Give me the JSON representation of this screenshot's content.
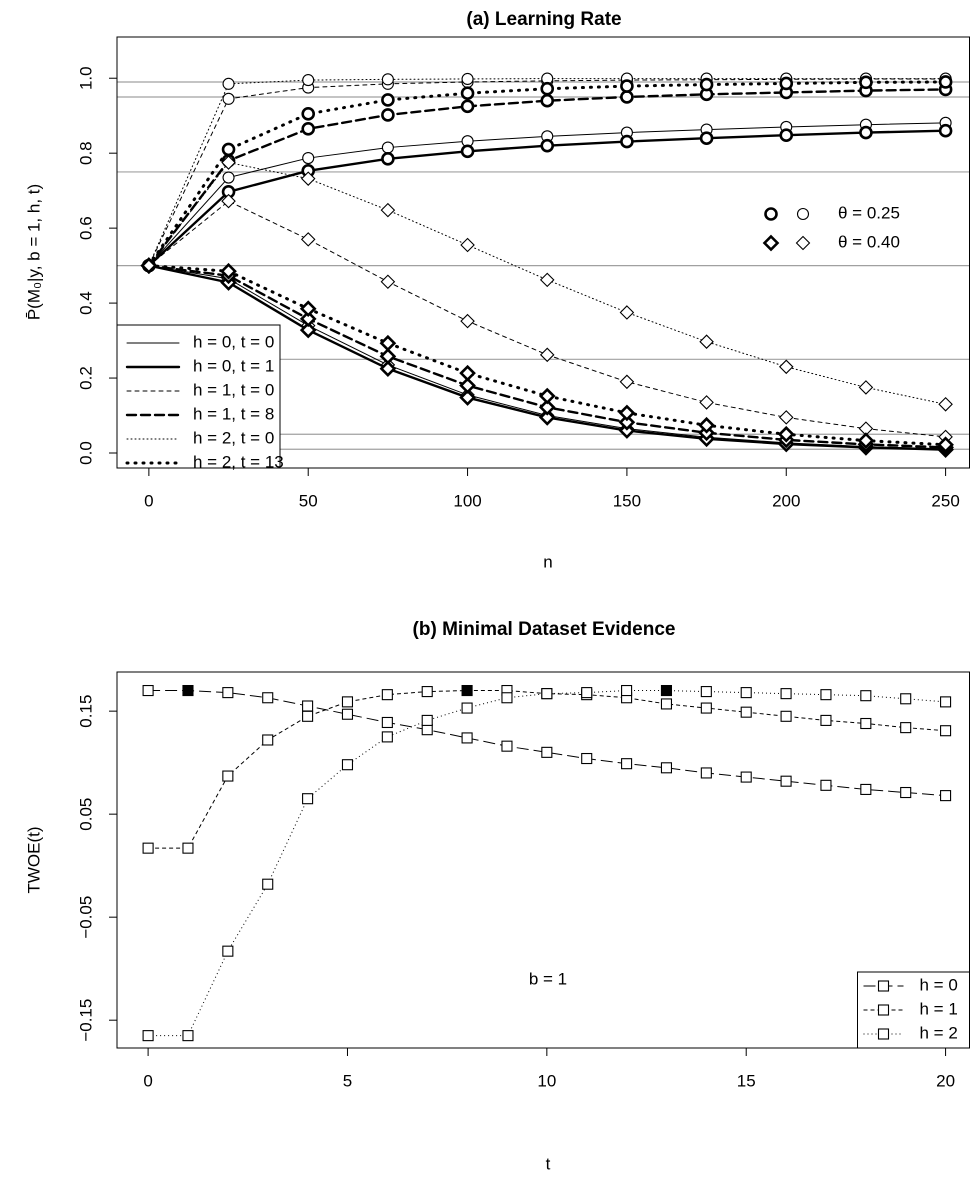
{
  "chart_data": [
    {
      "type": "line",
      "title": "(a) Learning Rate",
      "x_label": "n",
      "y_label": "P̄(M₀|y, b = 1, h, t)",
      "x": [
        0,
        25,
        50,
        75,
        100,
        125,
        150,
        175,
        200,
        225,
        250
      ],
      "xlim": [
        -10,
        257.5
      ],
      "ylim": [
        -0.04,
        1.11
      ],
      "xticks": [
        0,
        50,
        100,
        150,
        200,
        250
      ],
      "yticks": [
        {
          "value": 0,
          "label": "0.0"
        },
        0.2,
        0.4,
        0.6,
        0.8,
        {
          "value": 1,
          "label": "1.0"
        }
      ],
      "hlines": [
        0.01,
        0.05,
        0.25,
        0.5,
        0.75,
        0.95,
        0.99
      ],
      "hline_color": "#a0a0a0",
      "color": "#000000",
      "line_styles": [
        {
          "name": "h = 0, t = 0",
          "dash": "none",
          "width": 1
        },
        {
          "name": "h = 0, t = 1",
          "dash": "none",
          "width": 2.4
        },
        {
          "name": "h = 1, t = 0",
          "dash": "4,4",
          "width": 1
        },
        {
          "name": "h = 1, t = 8",
          "dash": "9,5",
          "width": 2.4
        },
        {
          "name": "h = 2, t = 0",
          "dash": "1,3",
          "width": 1
        },
        {
          "name": "h = 2, t = 13",
          "dash": "1,7",
          "width": 3
        }
      ],
      "groups": [
        {
          "name": "θ = 0.25",
          "marker": "circle",
          "series": [
            [
              0.5,
              0.735,
              0.787,
              0.815,
              0.832,
              0.845,
              0.855,
              0.863,
              0.87,
              0.876,
              0.881
            ],
            [
              0.5,
              0.697,
              0.753,
              0.785,
              0.805,
              0.82,
              0.831,
              0.84,
              0.848,
              0.855,
              0.86
            ],
            [
              0.5,
              0.945,
              0.975,
              0.985,
              0.99,
              0.993,
              0.995,
              0.996,
              0.997,
              0.998,
              0.998
            ],
            [
              0.5,
              0.78,
              0.865,
              0.902,
              0.925,
              0.94,
              0.95,
              0.957,
              0.962,
              0.967,
              0.97
            ],
            [
              0.5,
              0.985,
              0.995,
              0.997,
              0.998,
              0.999,
              0.999,
              0.999,
              0.999,
              0.999,
              0.999
            ],
            [
              0.5,
              0.81,
              0.905,
              0.942,
              0.96,
              0.972,
              0.979,
              0.983,
              0.986,
              0.989,
              0.99
            ]
          ]
        },
        {
          "name": "θ = 0.40",
          "marker": "diamond",
          "series": [
            [
              0.5,
              0.465,
              0.34,
              0.235,
              0.155,
              0.1,
              0.065,
              0.042,
              0.027,
              0.017,
              0.011
            ],
            [
              0.5,
              0.455,
              0.328,
              0.225,
              0.148,
              0.095,
              0.06,
              0.038,
              0.024,
              0.015,
              0.009
            ],
            [
              0.5,
              0.672,
              0.57,
              0.457,
              0.352,
              0.262,
              0.19,
              0.135,
              0.095,
              0.065,
              0.043
            ],
            [
              0.5,
              0.473,
              0.358,
              0.258,
              0.18,
              0.122,
              0.082,
              0.054,
              0.035,
              0.023,
              0.015
            ],
            [
              0.5,
              0.775,
              0.732,
              0.648,
              0.555,
              0.462,
              0.375,
              0.297,
              0.23,
              0.175,
              0.13
            ],
            [
              0.5,
              0.485,
              0.385,
              0.293,
              0.213,
              0.152,
              0.107,
              0.074,
              0.05,
              0.033,
              0.022
            ]
          ]
        }
      ]
    },
    {
      "type": "line",
      "title": "(b) Minimal Dataset Evidence",
      "x_label": "t",
      "y_label": "TWOE(t)",
      "annotation": "b = 1",
      "marker": "square",
      "color": "#000000",
      "legend": "bottom-right",
      "x": [
        0,
        1,
        2,
        3,
        4,
        5,
        6,
        7,
        8,
        9,
        10,
        11,
        12,
        13,
        14,
        15,
        16,
        17,
        18,
        19,
        20
      ],
      "xlim": [
        -0.78,
        20.6
      ],
      "ylim": [
        -0.177,
        0.188
      ],
      "xticks": [
        0,
        5,
        10,
        15,
        20
      ],
      "yticks": [
        {
          "value": -0.15,
          "label": "−0.15"
        },
        {
          "value": -0.05,
          "label": "−0.05"
        },
        0.05,
        0.15
      ],
      "series": [
        {
          "name": "h = 0",
          "dash": "12,5",
          "filled": 1,
          "values": [
            0.17,
            0.17,
            0.168,
            0.163,
            0.155,
            0.147,
            0.139,
            0.132,
            0.124,
            0.116,
            0.11,
            0.104,
            0.099,
            0.095,
            0.09,
            0.086,
            0.082,
            0.078,
            0.074,
            0.071,
            0.068
          ]
        },
        {
          "name": "h = 1",
          "dash": "4,3",
          "filled": 8,
          "values": [
            0.017,
            0.017,
            0.087,
            0.122,
            0.145,
            0.159,
            0.166,
            0.169,
            0.17,
            0.17,
            0.167,
            0.166,
            0.163,
            0.157,
            0.153,
            0.149,
            0.145,
            0.141,
            0.138,
            0.134,
            0.131
          ]
        },
        {
          "name": "h = 2",
          "dash": "1,3",
          "filled": 13,
          "values": [
            -0.165,
            -0.165,
            -0.083,
            -0.018,
            0.065,
            0.098,
            0.125,
            0.141,
            0.153,
            0.163,
            0.167,
            0.168,
            0.17,
            0.17,
            0.169,
            0.168,
            0.167,
            0.166,
            0.165,
            0.162,
            0.159
          ]
        }
      ]
    }
  ]
}
